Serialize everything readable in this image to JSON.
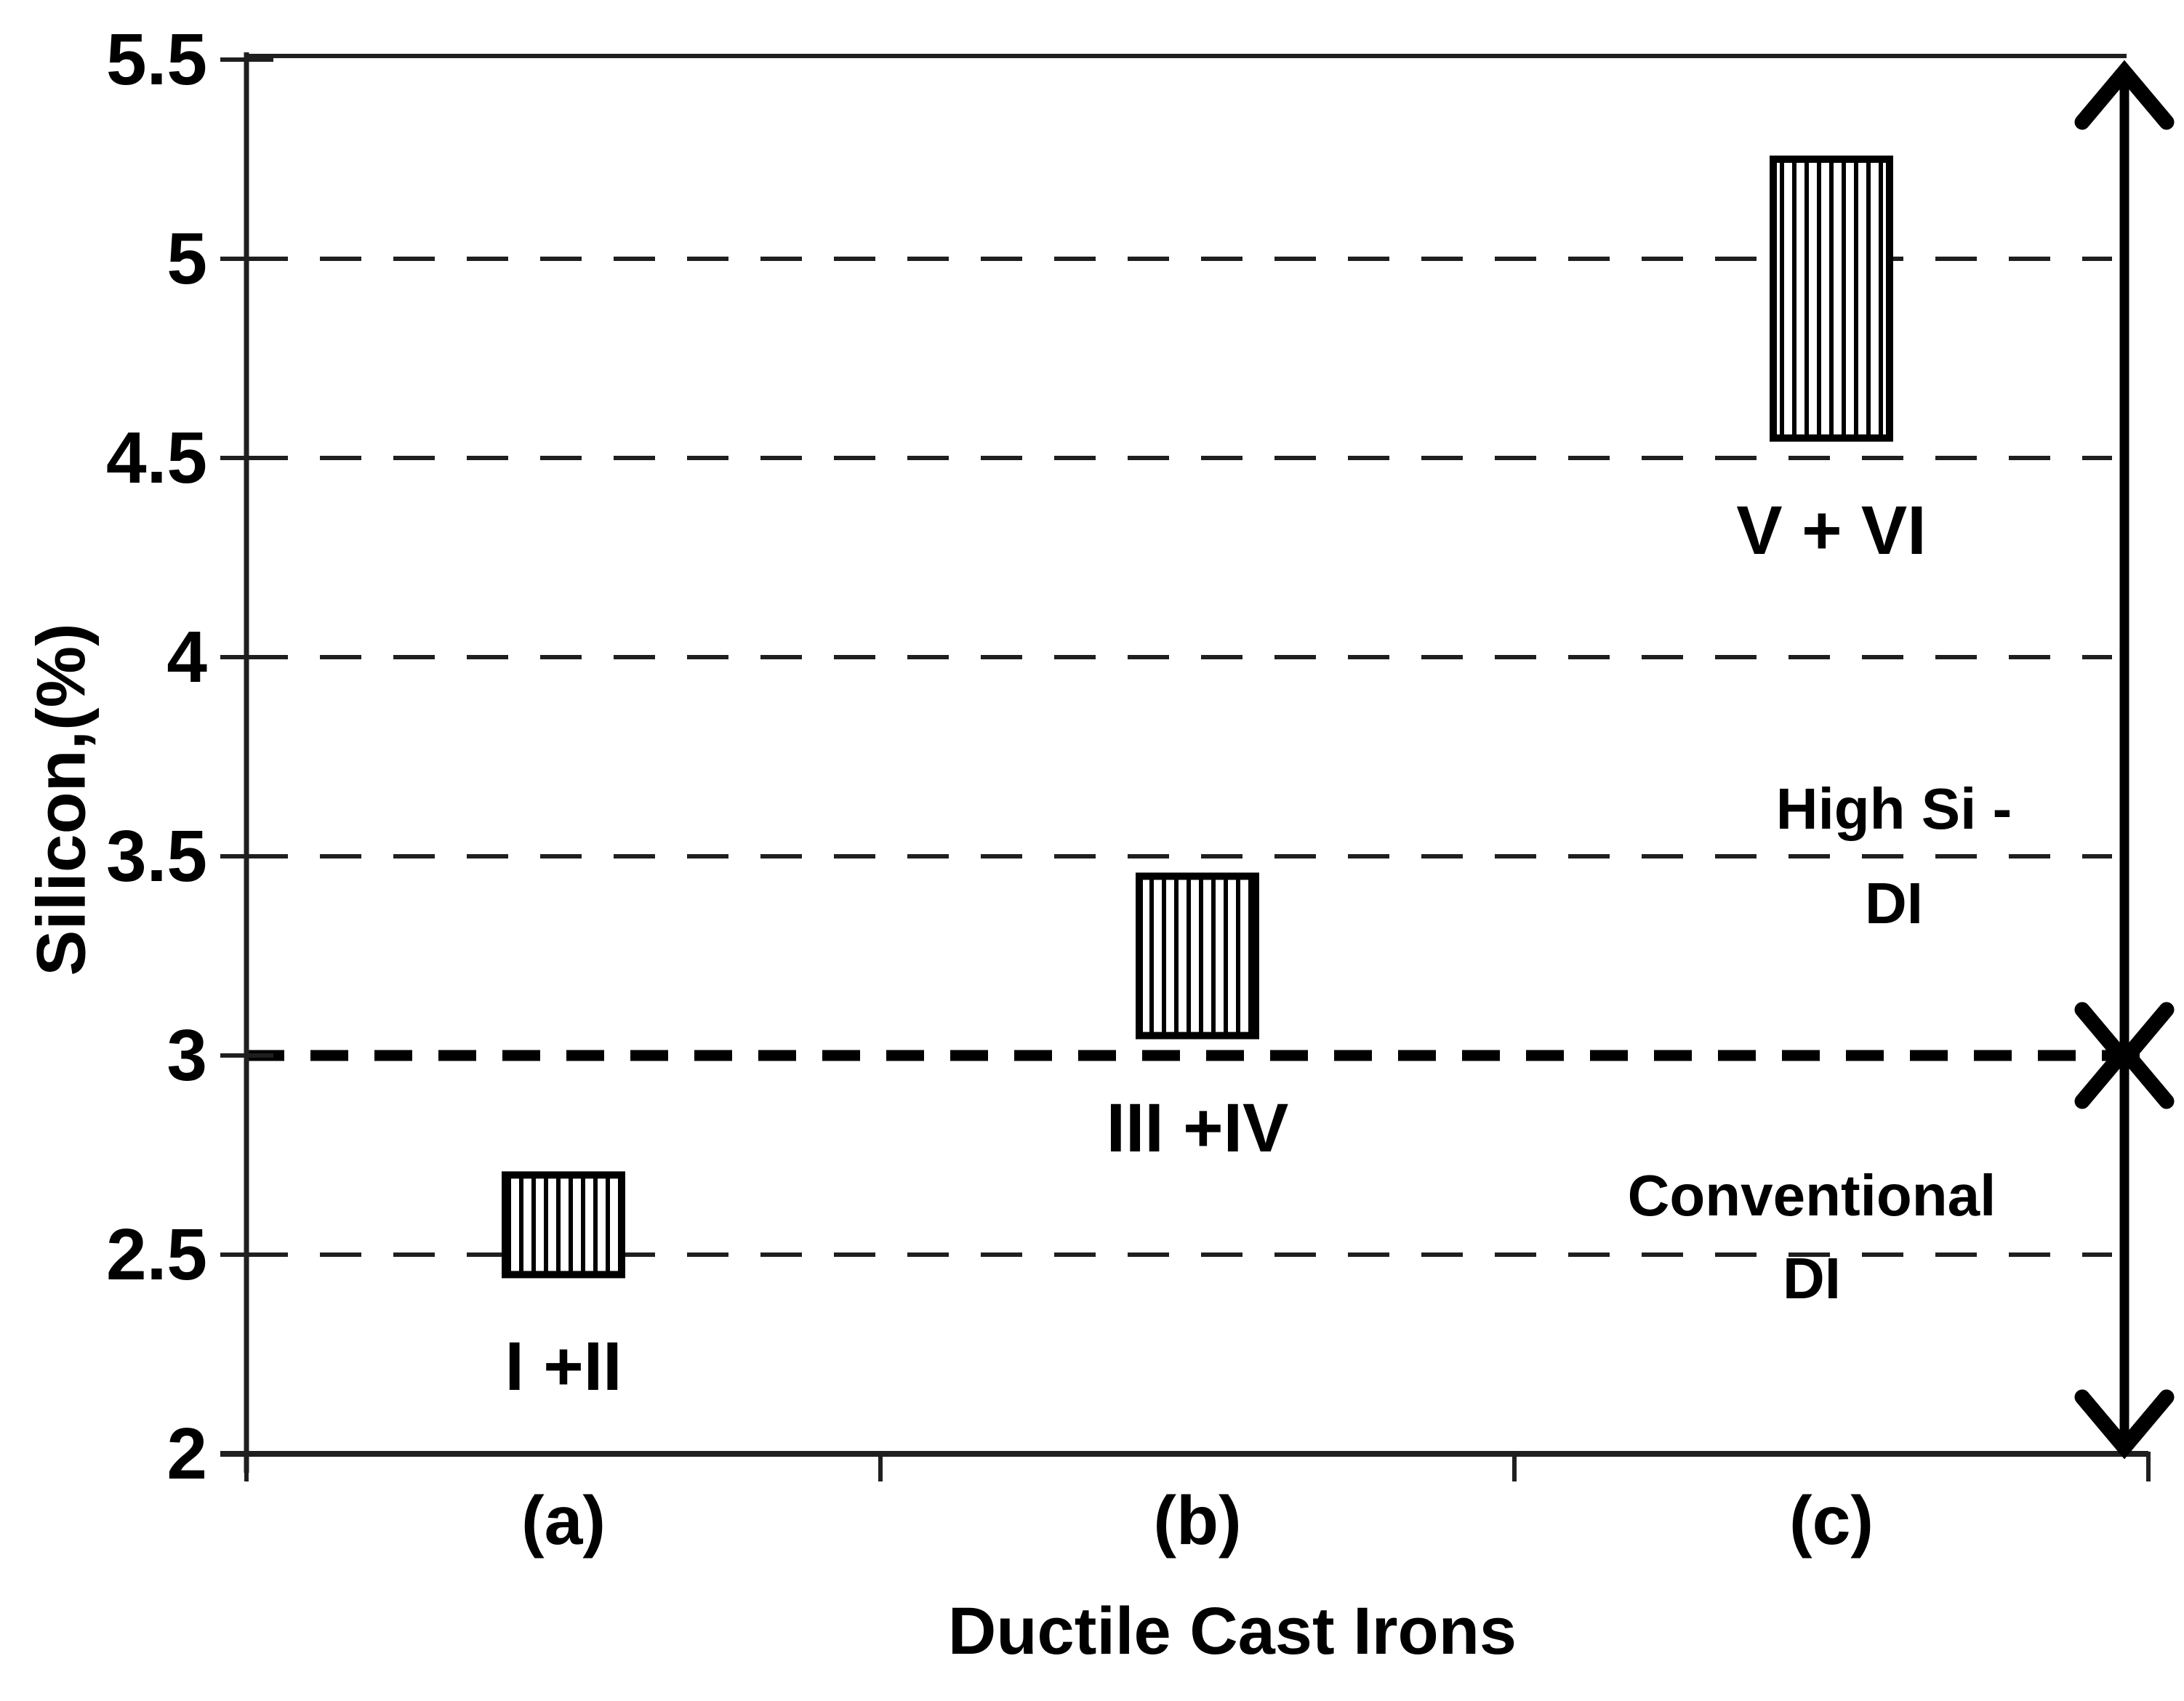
{
  "chart_data": {
    "type": "bar",
    "subtype": "floating-range-bars",
    "categories": [
      "(a)",
      "(b)",
      "(c)"
    ],
    "series": [
      {
        "name": "I +II",
        "range": [
          2.45,
          2.7
        ]
      },
      {
        "name": "III +IV",
        "range": [
          3.05,
          3.45
        ]
      },
      {
        "name": "V + VI",
        "range": [
          4.55,
          5.25
        ]
      }
    ],
    "title": "",
    "xlabel": "Ductile Cast Irons",
    "ylabel": "Silicon,(%)",
    "ylim": [
      2,
      5.5
    ],
    "yticks": [
      2,
      2.5,
      3,
      3.5,
      4,
      4.5,
      5,
      5.5
    ],
    "ytick_labels": [
      "2",
      "2.5",
      "3",
      "3.5",
      "4",
      "4.5",
      "5",
      "5.5"
    ],
    "grid": "dashed horizontal gridlines at every 0.5",
    "threshold": {
      "value": 3,
      "style": "bold dashed horizontal line"
    },
    "bar_fill": "vertical hatch stripes, black outline",
    "annotations": {
      "high_si": {
        "lines": [
          "High Si -",
          "DI"
        ],
        "region": "silicon above 3%"
      },
      "conventional": {
        "lines": [
          "Conventional",
          "DI"
        ],
        "region": "silicon below 3%"
      },
      "arrow": "double-headed vertical arrow at right edge spanning full axis, chevrons crossing at 3%"
    },
    "colors": {
      "foreground": "#000000",
      "background": "#ffffff",
      "grid": "#1f1f1f"
    }
  }
}
